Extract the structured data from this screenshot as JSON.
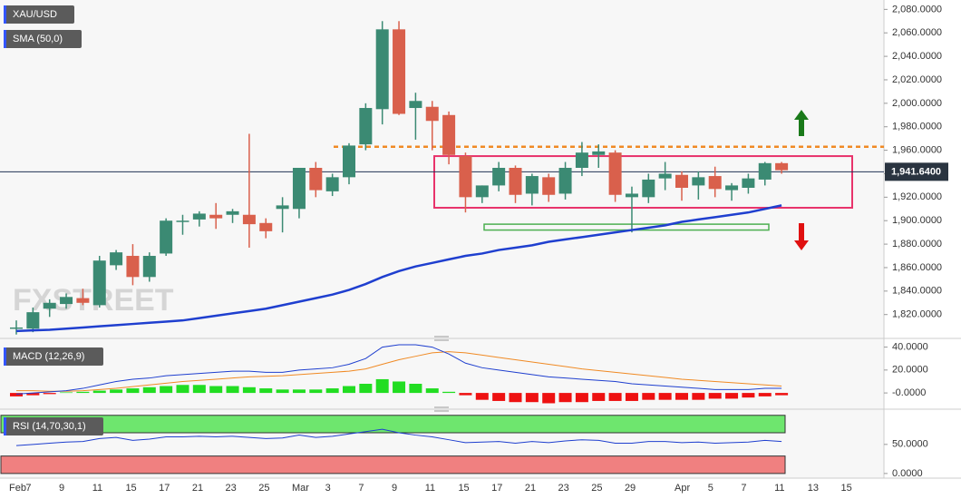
{
  "chart_data": [
    {
      "type": "candlestick",
      "title": "XAU/USD",
      "indicator": "SMA (50,0)",
      "watermark": "FXSTREET",
      "categories": [
        "Feb",
        "7",
        null,
        "9",
        null,
        "11",
        null,
        "15",
        null,
        "17",
        null,
        "21",
        null,
        "23",
        null,
        "25",
        null,
        "Mar",
        null,
        "3",
        null,
        "7",
        null,
        "9",
        null,
        "11",
        null,
        "15",
        null,
        "17",
        null,
        "21",
        null,
        "23",
        null,
        "25",
        null,
        "29",
        null,
        null,
        "Apr",
        null,
        "5",
        null,
        "7",
        null,
        "11",
        null,
        "13",
        null,
        "15"
      ],
      "open": [
        1808,
        1808,
        1825,
        1829,
        1834,
        1828,
        1862,
        1870,
        1852,
        1872,
        1899,
        1901,
        1905,
        1905,
        1905,
        1898,
        1910,
        1910,
        1945,
        1925,
        1937,
        1965,
        1995,
        2063,
        1996,
        1997,
        1990,
        1955,
        1920,
        1930,
        1945,
        1923,
        1937,
        1923,
        1945,
        1956,
        1958,
        1920,
        1920,
        1936,
        1939,
        1930,
        1938,
        1926,
        1928,
        1935,
        1949,
        null,
        null,
        null,
        null
      ],
      "high": [
        1815,
        1826,
        1833,
        1838,
        1842,
        1870,
        1875,
        1880,
        1873,
        1902,
        1905,
        1908,
        1915,
        1910,
        1974,
        1902,
        1920,
        1945,
        1950,
        1940,
        1966,
        2000,
        2070,
        2070,
        2009,
        2002,
        1993,
        1958,
        1930,
        1950,
        1947,
        1940,
        1940,
        1950,
        1967,
        1965,
        1960,
        1929,
        1940,
        1950,
        1942,
        1942,
        1946,
        1932,
        1940,
        1950,
        1950,
        null,
        null,
        null,
        null
      ],
      "low": [
        1803,
        1805,
        1818,
        1825,
        1828,
        1826,
        1858,
        1845,
        1848,
        1870,
        1888,
        1895,
        1893,
        1898,
        1877,
        1885,
        1890,
        1902,
        1920,
        1921,
        1931,
        1960,
        1982,
        1990,
        1969,
        1960,
        1948,
        1907,
        1915,
        1925,
        1915,
        1913,
        1916,
        1918,
        1938,
        1945,
        1916,
        1890,
        1915,
        1926,
        1917,
        1918,
        1920,
        1917,
        1923,
        1930,
        1940,
        null,
        null,
        null,
        null
      ],
      "close": [
        1809,
        1822,
        1830,
        1835,
        1830,
        1866,
        1873,
        1852,
        1870,
        1900,
        1900,
        1906,
        1902,
        1908,
        1897,
        1891,
        1913,
        1945,
        1926,
        1937,
        1964,
        1996,
        2063,
        1991,
        2002,
        1985,
        1956,
        1920,
        1930,
        1945,
        1922,
        1938,
        1922,
        1945,
        1958,
        1959,
        1922,
        1923,
        1935,
        1940,
        1928,
        1937,
        1927,
        1930,
        1936,
        1949,
        1943,
        null,
        null,
        null,
        null
      ],
      "up_color": "#3b8a73",
      "down_color": "#d9604c",
      "sma": {
        "color": "#1f3fcf",
        "values": [
          1806,
          1806.5,
          1807,
          1808,
          1809,
          1810,
          1811,
          1812,
          1813,
          1814,
          1815,
          1817,
          1819,
          1821,
          1823,
          1825,
          1828,
          1831,
          1834,
          1837,
          1841,
          1846,
          1852,
          1857,
          1861,
          1864,
          1867,
          1870,
          1872,
          1875,
          1877,
          1879,
          1882,
          1884,
          1886,
          1888,
          1890,
          1892,
          1894,
          1896,
          1899,
          1901,
          1903,
          1905,
          1907,
          1910,
          1913,
          null,
          null,
          null,
          null
        ]
      },
      "resistance": {
        "value": 1963,
        "color": "#f08a24"
      },
      "range_box": {
        "low": 1911,
        "high": 1955,
        "color": "#e8336b"
      },
      "support_box": {
        "low": 1892,
        "high": 1897,
        "color": "#4caf50"
      },
      "last_price": {
        "value": 1941.64,
        "label": "1,941.6400"
      },
      "ylim": [
        1802,
        2088
      ],
      "yticks": [
        {
          "value": 2080,
          "label": "2,080.0000"
        },
        {
          "value": 2060,
          "label": "2,060.0000"
        },
        {
          "value": 2040,
          "label": "2,040.0000"
        },
        {
          "value": 2020,
          "label": "2,020.0000"
        },
        {
          "value": 2000,
          "label": "2,000.0000"
        },
        {
          "value": 1980,
          "label": "1,980.0000"
        },
        {
          "value": 1960,
          "label": "1,960.0000"
        },
        {
          "value": 1940,
          "label": "1,940.0000"
        },
        {
          "value": 1920,
          "label": "1,920.0000"
        },
        {
          "value": 1900,
          "label": "1,900.0000"
        },
        {
          "value": 1880,
          "label": "1,880.0000"
        },
        {
          "value": 1860,
          "label": "1,860.0000"
        },
        {
          "value": 1840,
          "label": "1,840.0000"
        },
        {
          "value": 1820,
          "label": "1,820.0000"
        }
      ]
    },
    {
      "type": "macd",
      "title": "MACD (12,26,9)",
      "macd": {
        "color": "#1f3fcf",
        "values": [
          -1,
          0,
          1,
          2,
          4,
          7,
          10,
          12,
          13,
          15,
          16,
          17,
          18,
          19,
          19,
          18,
          18,
          20,
          21,
          22,
          25,
          30,
          40,
          42,
          42,
          40,
          34,
          26,
          22,
          20,
          18,
          16,
          14,
          13,
          12,
          11,
          10,
          8,
          7,
          6,
          5,
          4,
          3,
          3,
          3,
          4,
          4,
          null,
          null,
          null,
          null
        ]
      },
      "signal": {
        "color": "#f08a24",
        "values": [
          2,
          2,
          1.5,
          1.5,
          2,
          3,
          4,
          5.5,
          7,
          8.5,
          10,
          11,
          12,
          13,
          14,
          14.5,
          15,
          16,
          17,
          18,
          19,
          21,
          25,
          29,
          32,
          35,
          36,
          35,
          33,
          31,
          29,
          27,
          25,
          23,
          21,
          19.5,
          18,
          16.5,
          15,
          13.5,
          12,
          11,
          10,
          9,
          8,
          7,
          6,
          null,
          null,
          null,
          null
        ]
      },
      "histogram": {
        "up_color": "#22dd22",
        "down_color": "#ee1111",
        "values": [
          -3,
          -2,
          -1,
          0.5,
          1,
          2,
          3,
          4,
          5,
          6,
          7,
          7,
          6,
          6,
          5,
          4,
          3,
          3,
          3,
          4,
          6,
          8,
          12,
          10,
          8,
          4,
          1,
          -2,
          -6,
          -7,
          -8,
          -8,
          -9,
          -8,
          -8,
          -7,
          -7,
          -7,
          -6,
          -6,
          -6,
          -6,
          -5,
          -5,
          -4,
          -3,
          -2,
          null,
          null,
          null,
          null
        ]
      },
      "ylim": [
        -11,
        46
      ],
      "yticks": [
        {
          "value": 40,
          "label": "40.0000"
        },
        {
          "value": 20,
          "label": "20.0000"
        },
        {
          "value": 0,
          "label": "-0.0000"
        }
      ]
    },
    {
      "type": "rsi",
      "title": "RSI (14,70,30,1)",
      "rsi": {
        "color": "#1f3fcf",
        "values": [
          48,
          50,
          52,
          54,
          55,
          60,
          62,
          57,
          59,
          63,
          63,
          64,
          63,
          64,
          62,
          60,
          61,
          66,
          62,
          64,
          68,
          72,
          76,
          70,
          66,
          63,
          58,
          53,
          54,
          55,
          52,
          55,
          53,
          56,
          58,
          57,
          52,
          52,
          55,
          55,
          53,
          54,
          52,
          53,
          54,
          57,
          55,
          null,
          null,
          null,
          null
        ]
      },
      "overbought": {
        "from": 70,
        "to": 100,
        "color": "#6ee66e"
      },
      "oversold": {
        "from": 0,
        "to": 30,
        "color": "#f08080"
      },
      "ylim": [
        -8,
        109
      ],
      "yticks": [
        {
          "value": 50,
          "label": "50.0000"
        },
        {
          "value": 0,
          "label": "0.0000"
        }
      ]
    }
  ]
}
